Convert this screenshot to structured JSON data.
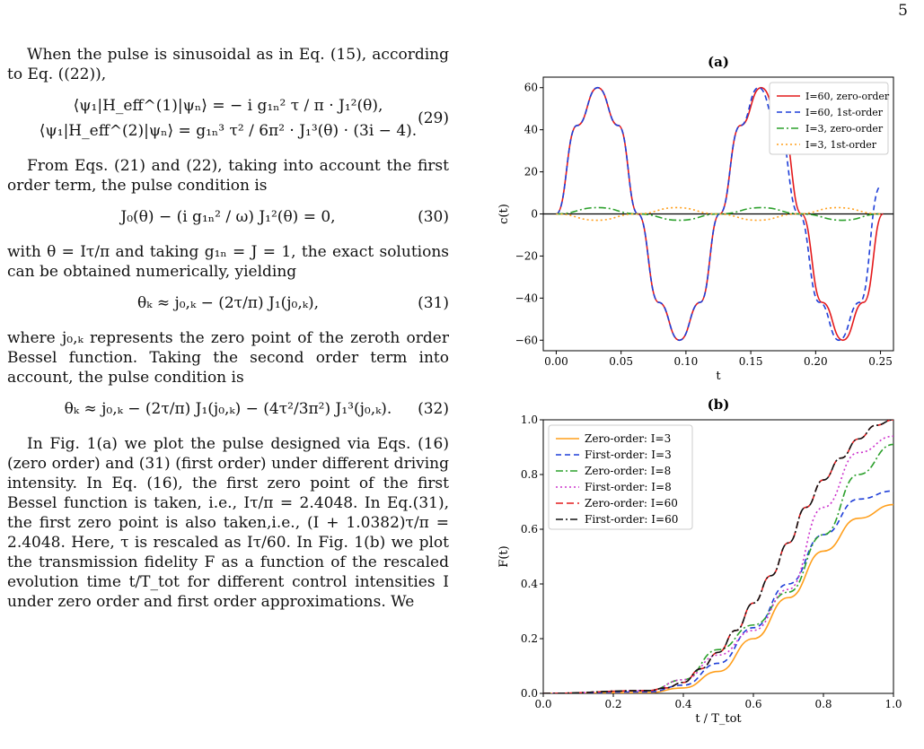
{
  "page_number": "5",
  "text": {
    "p1": "When the pulse is sinusoidal as in Eq. (15), according to Eq. ((22)),",
    "eq29_line1": "⟨ψ₁|H_eff^(1)|ψₙ⟩ = − i g₁ₙ² τ / π · J₁²(θ),",
    "eq29_line2": "⟨ψ₁|H_eff^(2)|ψₙ⟩ = g₁ₙ³ τ² / 6π² · J₁³(θ) · (3i − 4).",
    "eq29_num": "(29)",
    "p2": "From Eqs. (21) and (22), taking into account the first order term, the pulse condition is",
    "eq30": "J₀(θ) − (i g₁ₙ² / ω) J₁²(θ) = 0,",
    "eq30_num": "(30)",
    "p3": "with θ = Iτ/π and taking g₁ₙ = J = 1, the exact solutions can be obtained numerically, yielding",
    "eq31": "θₖ ≈ j₀,ₖ − (2τ/π) J₁(j₀,ₖ),",
    "eq31_num": "(31)",
    "p4": "where j₀,ₖ represents the zero point of the zeroth order Bessel function. Taking the second order term into account, the pulse condition is",
    "eq32": "θₖ ≈ j₀,ₖ − (2τ/π) J₁(j₀,ₖ) − (4τ²/3π²) J₁³(j₀,ₖ).",
    "eq32_num": "(32)",
    "p5": "In Fig. 1(a) we plot the pulse designed via Eqs. (16) (zero order) and (31) (first order) under different driving intensity. In Eq. (16), the first zero point of the first Bessel function is taken, i.e., Iτ/π = 2.4048. In Eq.(31), the first zero point is also taken,i.e., (I + 1.0382)τ/π = 2.4048. Here, τ is rescaled as Iτ/60. In Fig. 1(b) we plot the transmission fidelity F as a function of the rescaled evolution time t/T_tot for different control intensities I under zero order and first order approximations. We"
  },
  "chart_data": [
    {
      "type": "line",
      "title": "(a)",
      "xlabel": "t",
      "ylabel": "c(t)",
      "xlim": [
        -0.01,
        0.26
      ],
      "ylim": [
        -65,
        65
      ],
      "xticks": [
        "0.00",
        "0.05",
        "0.10",
        "0.15",
        "0.20",
        "0.25"
      ],
      "yticks": [
        "−60",
        "−40",
        "−20",
        "0",
        "20",
        "40",
        "60"
      ],
      "legend_position": "top-right",
      "series": [
        {
          "name": "I=60, zero-order",
          "color": "#e41a1c",
          "dash": "solid",
          "x": [
            0,
            0.016,
            0.032,
            0.048,
            0.063,
            0.079,
            0.095,
            0.111,
            0.126,
            0.142,
            0.158,
            0.174,
            0.189,
            0.205,
            0.221,
            0.237,
            0.252
          ],
          "y": [
            0,
            42,
            60,
            42,
            0,
            -42,
            -60,
            -42,
            0,
            42,
            60,
            42,
            0,
            -42,
            -60,
            -42,
            0
          ]
        },
        {
          "name": "I=60, 1st-order",
          "color": "#1f3fd8",
          "dash": "6,4",
          "x": [
            0,
            0.016,
            0.032,
            0.048,
            0.063,
            0.079,
            0.095,
            0.111,
            0.126,
            0.142,
            0.156,
            0.171,
            0.187,
            0.203,
            0.218,
            0.234,
            0.25
          ],
          "y": [
            0,
            42,
            60,
            42,
            0,
            -42,
            -60,
            -42,
            0,
            42,
            60,
            42,
            0,
            -42,
            -60,
            -42,
            13
          ]
        },
        {
          "name": "I=3, zero-order",
          "color": "#2ca02c",
          "dash": "8,3,2,3",
          "x": [
            0,
            0.032,
            0.063,
            0.095,
            0.126,
            0.158,
            0.189,
            0.221,
            0.25
          ],
          "y": [
            0,
            3,
            0,
            -3,
            0,
            3,
            0,
            -3,
            0
          ]
        },
        {
          "name": "I=3, 1st-order",
          "color": "#ff9f1c",
          "dash": "2,3",
          "x": [
            0,
            0.031,
            0.062,
            0.093,
            0.124,
            0.155,
            0.186,
            0.217,
            0.25
          ],
          "y": [
            0,
            -3,
            0,
            3,
            0,
            -3,
            0,
            3,
            0
          ]
        }
      ]
    },
    {
      "type": "line",
      "title": "(b)",
      "xlabel": "t / T_tot",
      "ylabel": "F(t)",
      "xlim": [
        0,
        1
      ],
      "ylim": [
        0,
        1
      ],
      "xticks": [
        "0.0",
        "0.2",
        "0.4",
        "0.6",
        "0.8",
        "1.0"
      ],
      "yticks": [
        "0.0",
        "0.2",
        "0.4",
        "0.6",
        "0.8",
        "1.0"
      ],
      "legend_position": "top-left",
      "series": [
        {
          "name": "Zero-order: I=3",
          "color": "#ff9f1c",
          "dash": "solid",
          "x": [
            0,
            0.3,
            0.4,
            0.5,
            0.6,
            0.7,
            0.8,
            0.9,
            1.0
          ],
          "y": [
            0,
            0.003,
            0.02,
            0.08,
            0.2,
            0.35,
            0.52,
            0.64,
            0.69
          ]
        },
        {
          "name": "First-order: I=3",
          "color": "#1f3fd8",
          "dash": "6,4",
          "x": [
            0,
            0.3,
            0.4,
            0.5,
            0.6,
            0.7,
            0.8,
            0.9,
            1.0
          ],
          "y": [
            0,
            0.005,
            0.03,
            0.11,
            0.24,
            0.4,
            0.58,
            0.71,
            0.74
          ]
        },
        {
          "name": "Zero-order: I=8",
          "color": "#2ca02c",
          "dash": "8,3,2,3",
          "x": [
            0,
            0.3,
            0.4,
            0.5,
            0.6,
            0.7,
            0.8,
            0.9,
            1.0
          ],
          "y": [
            0,
            0.01,
            0.05,
            0.16,
            0.25,
            0.37,
            0.58,
            0.8,
            0.91
          ]
        },
        {
          "name": "First-order: I=8",
          "color": "#cc33cc",
          "dash": "2,3",
          "x": [
            0,
            0.3,
            0.4,
            0.5,
            0.6,
            0.7,
            0.8,
            0.9,
            1.0
          ],
          "y": [
            0,
            0.01,
            0.05,
            0.14,
            0.23,
            0.38,
            0.68,
            0.88,
            0.94
          ]
        },
        {
          "name": "Zero-order: I=60",
          "color": "#e41a1c",
          "dash": "8,4",
          "x": [
            0,
            0.3,
            0.35,
            0.4,
            0.45,
            0.5,
            0.55,
            0.6,
            0.65,
            0.7,
            0.75,
            0.8,
            0.85,
            0.9,
            0.95,
            1.0
          ],
          "y": [
            0,
            0.01,
            0.02,
            0.04,
            0.09,
            0.15,
            0.23,
            0.33,
            0.43,
            0.55,
            0.68,
            0.78,
            0.86,
            0.93,
            0.98,
            1.0
          ]
        },
        {
          "name": "First-order: I=60",
          "color": "#111111",
          "dash": "8,3,2,3",
          "x": [
            0,
            0.3,
            0.35,
            0.4,
            0.45,
            0.5,
            0.55,
            0.6,
            0.65,
            0.7,
            0.75,
            0.8,
            0.85,
            0.9,
            0.95,
            1.0
          ],
          "y": [
            0,
            0.01,
            0.02,
            0.04,
            0.09,
            0.15,
            0.23,
            0.33,
            0.43,
            0.55,
            0.68,
            0.78,
            0.86,
            0.93,
            0.98,
            1.0
          ]
        }
      ]
    }
  ]
}
